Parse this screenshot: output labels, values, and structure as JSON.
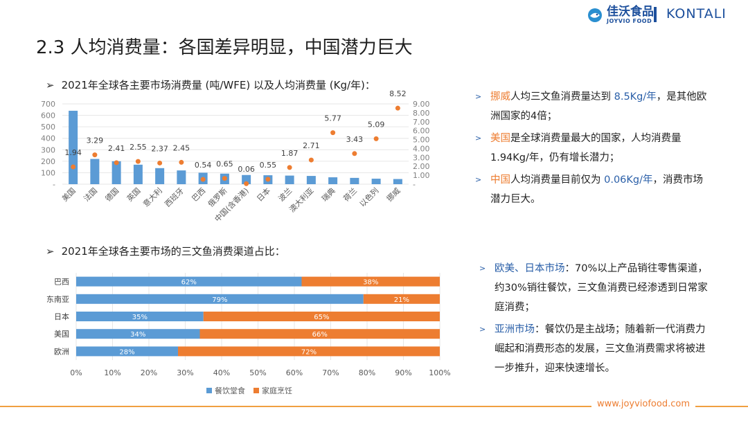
{
  "header": {
    "title": "2.3 人均消费量：各国差异明显，中国潜力巨大",
    "brand_cn": "佳沃食品",
    "brand_en": "JOYVIO FOOD",
    "brand_partner": "KONTALI"
  },
  "section1": {
    "heading": "2021年全球各主要市场消费量 (吨/WFE) 以及人均消费量 (Kg/年)："
  },
  "section2": {
    "heading": "2021年全球各主要市场的三文鱼消费渠道占比："
  },
  "notes1": [
    {
      "a": "挪威",
      "b": "人均三文鱼消费量达到 ",
      "c": "8.5Kg/年",
      "d": "，是其他欧洲国家的4倍；"
    },
    {
      "a": "美国",
      "b": "是全球消费量最大的国家，人均消费量1.94Kg/年，仍有增长潜力；",
      "c": "",
      "d": ""
    },
    {
      "a": "中国",
      "b": "人均消费量目前仅为 ",
      "c": "0.06Kg/年",
      "d": "，消费市场潜力巨大。"
    }
  ],
  "notes2": [
    {
      "a": "欧美、日本市场",
      "b": "：70%以上产品销往零售渠道，约30%销往餐饮，三文鱼消费已经渗透到日常家庭消费；"
    },
    {
      "a": "亚洲市场",
      "b": "：餐饮仍是主战场；随着新一代消费力崛起和消费形态的发展，三文鱼消费需求将被进一步推升，迎来快速增长。"
    }
  ],
  "footer": {
    "url": "www.joyviofood.com"
  },
  "colors": {
    "blue": "#5b9bd5",
    "orange": "#ed7d31",
    "brand": "#1c4f9c"
  },
  "chart_data": [
    {
      "type": "bar",
      "title": "2021年全球各主要市场消费量 (吨/WFE) 以及人均消费量 (Kg/年)",
      "categories": [
        "美国",
        "法国",
        "德国",
        "英国",
        "意大利",
        "西班牙",
        "巴西",
        "俄罗斯",
        "中国(含香港)",
        "日本",
        "波兰",
        "澳大利亚",
        "瑞典",
        "荷兰",
        "以色列",
        "挪威"
      ],
      "series": [
        {
          "name": "消费量",
          "type": "bar",
          "axis": "left",
          "values": [
            640,
            220,
            200,
            170,
            140,
            120,
            100,
            92,
            80,
            78,
            75,
            72,
            60,
            55,
            48,
            45
          ]
        },
        {
          "name": "人均消费量",
          "type": "scatter",
          "axis": "right",
          "values": [
            1.94,
            3.29,
            2.41,
            2.55,
            2.37,
            2.45,
            0.54,
            0.65,
            0.06,
            0.55,
            1.87,
            2.71,
            5.77,
            3.43,
            5.09,
            8.52
          ],
          "labels": [
            "1.94",
            "3.29",
            "2.41",
            "2.55",
            "2.37",
            "2.45",
            "0.54",
            "0.65",
            "0.06",
            "0.55",
            "1.87",
            "2.71",
            "5.77",
            "3.43",
            "5.09",
            "8.52"
          ]
        }
      ],
      "ylim": [
        0,
        700
      ],
      "yticks": [
        "-",
        "100",
        "200",
        "300",
        "400",
        "500",
        "600",
        "700"
      ],
      "y2lim": [
        0,
        9
      ],
      "y2ticks": [
        "-",
        "1.00",
        "2.00",
        "3.00",
        "4.00",
        "5.00",
        "6.00",
        "7.00",
        "8.00",
        "9.00"
      ]
    },
    {
      "type": "bar",
      "orientation": "horizontal-stacked-100",
      "title": "2021年全球各主要市场的三文鱼消费渠道占比",
      "categories": [
        "巴西",
        "东南亚",
        "日本",
        "美国",
        "欧洲"
      ],
      "series": [
        {
          "name": "餐饮堂食",
          "values": [
            62,
            79,
            35,
            34,
            28
          ],
          "labels": [
            "62%",
            "79%",
            "35%",
            "34%",
            "28%"
          ]
        },
        {
          "name": "家庭烹饪",
          "values": [
            38,
            21,
            65,
            66,
            72
          ],
          "labels": [
            "38%",
            "21%",
            "65%",
            "66%",
            "72%"
          ]
        }
      ],
      "xticks": [
        "0%",
        "10%",
        "20%",
        "30%",
        "40%",
        "50%",
        "60%",
        "70%",
        "80%",
        "90%",
        "100%"
      ],
      "xlim": [
        0,
        100
      ],
      "legend": "bottom"
    }
  ]
}
